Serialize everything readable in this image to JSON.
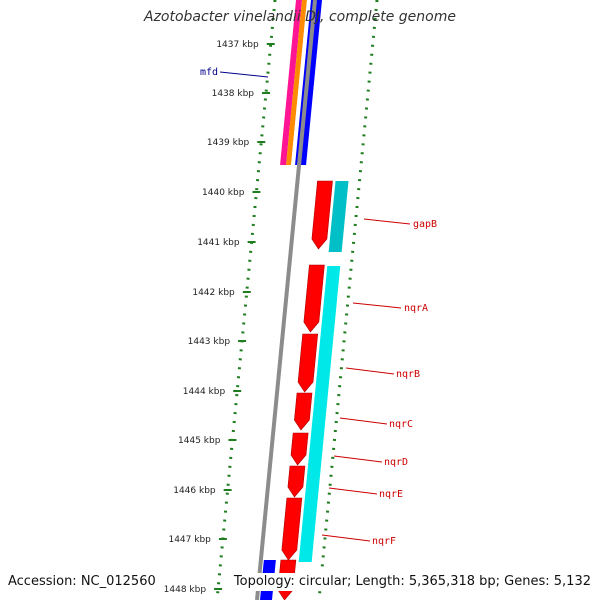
{
  "title": "Azotobacter vinelandii DJ, complete genome",
  "accession_text": "Accession: NC_012560",
  "topology_text": "Topology: circular; Length: 5,365,318 bp; Genes: 5,132",
  "colors": {
    "backbone": "#8c8c8c",
    "tick": "#1e7d1e",
    "forward_cds": "#ff0000",
    "reverse_cds": "#00e8e8",
    "label_red": "#cc0000",
    "label_blue": "#00008b"
  },
  "kbp_labels": [
    "1437 kbp",
    "1438 kbp",
    "1439 kbp",
    "1440 kbp",
    "1441 kbp",
    "1442 kbp",
    "1443 kbp",
    "1444 kbp",
    "1445 kbp",
    "1446 kbp",
    "1447 kbp",
    "1448 kbp"
  ],
  "gene_labels": [
    {
      "name": "mfd",
      "color": "blue"
    },
    {
      "name": "gapB",
      "color": "red"
    },
    {
      "name": "nqrA",
      "color": "red"
    },
    {
      "name": "nqrB",
      "color": "red"
    },
    {
      "name": "nqrC",
      "color": "red"
    },
    {
      "name": "nqrD",
      "color": "red"
    },
    {
      "name": "nqrE",
      "color": "red"
    },
    {
      "name": "nqrF",
      "color": "red"
    }
  ]
}
